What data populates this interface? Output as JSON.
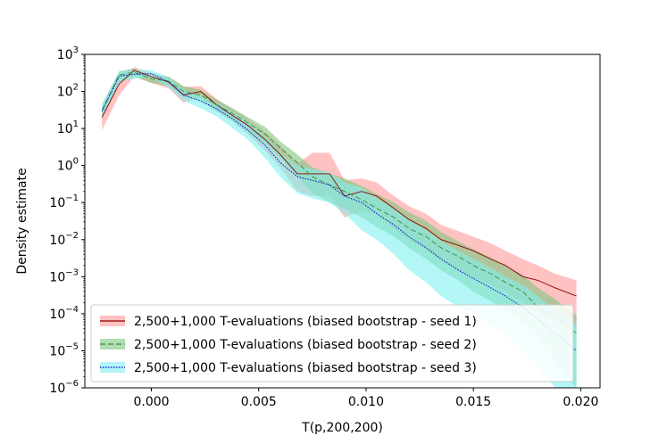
{
  "chart_data": {
    "type": "line",
    "title": "",
    "xlabel": "T(p,200,200)",
    "ylabel": "Density estimate",
    "xlim": [
      -0.0031,
      0.0209
    ],
    "ylim": [
      1e-06,
      1000
    ],
    "yscale": "log",
    "grid": false,
    "legend_position": "bottom-left",
    "x_ticks": [
      {
        "value": 0.0,
        "label": "0.000"
      },
      {
        "value": 0.005,
        "label": "0.005"
      },
      {
        "value": 0.01,
        "label": "0.010"
      },
      {
        "value": 0.015,
        "label": "0.015"
      },
      {
        "value": 0.02,
        "label": "0.020"
      }
    ],
    "y_ticks": [
      {
        "exp": -6,
        "label_base": "10",
        "label_exp": "−6"
      },
      {
        "exp": -5,
        "label_base": "10",
        "label_exp": "−5"
      },
      {
        "exp": -4,
        "label_base": "10",
        "label_exp": "−4"
      },
      {
        "exp": -3,
        "label_base": "10",
        "label_exp": "−3"
      },
      {
        "exp": -2,
        "label_base": "10",
        "label_exp": "−2"
      },
      {
        "exp": -1,
        "label_base": "10",
        "label_exp": "−1"
      },
      {
        "exp": 0,
        "label_base": "10",
        "label_exp": "0"
      },
      {
        "exp": 1,
        "label_base": "10",
        "label_exp": "1"
      },
      {
        "exp": 2,
        "label_base": "10",
        "label_exp": "2"
      },
      {
        "exp": 3,
        "label_base": "10",
        "label_exp": "3"
      }
    ],
    "series": [
      {
        "name": "2,500+1,000 T-evaluations (biased bootstrap - seed 1)",
        "line_color": "#8b0000",
        "band_color": "#ff9a9a",
        "line_style": "solid",
        "x": [
          -0.0023,
          -0.0015,
          -0.0008,
          0.0,
          0.0008,
          0.0015,
          0.0023,
          0.003,
          0.0038,
          0.0045,
          0.0053,
          0.006,
          0.0068,
          0.0075,
          0.0083,
          0.009,
          0.0098,
          0.0105,
          0.0113,
          0.012,
          0.0128,
          0.0135,
          0.0143,
          0.015,
          0.0158,
          0.0165,
          0.0173,
          0.018,
          0.0188,
          0.0198
        ],
        "values": [
          20,
          160,
          370,
          250,
          180,
          80,
          100,
          45,
          22,
          12,
          5,
          2,
          0.6,
          0.6,
          0.6,
          0.15,
          0.2,
          0.15,
          0.07,
          0.035,
          0.02,
          0.01,
          0.007,
          0.005,
          0.003,
          0.002,
          0.001,
          0.0008,
          0.0005,
          0.0003
        ],
        "lower": [
          9,
          80,
          250,
          170,
          120,
          50,
          70,
          30,
          15,
          7,
          2.5,
          0.9,
          0.2,
          0.15,
          0.15,
          0.04,
          0.06,
          0.05,
          0.02,
          0.01,
          0.005,
          0.0025,
          0.0015,
          0.001,
          0.0006,
          0.0004,
          0.0002,
          0.0001,
          6e-05,
          4e-05
        ],
        "upper": [
          35,
          250,
          450,
          320,
          250,
          130,
          140,
          65,
          32,
          18,
          8,
          3.5,
          1.1,
          2.2,
          2.2,
          0.4,
          0.45,
          0.35,
          0.15,
          0.08,
          0.05,
          0.025,
          0.017,
          0.012,
          0.008,
          0.005,
          0.003,
          0.002,
          0.0012,
          0.0008
        ]
      },
      {
        "name": "2,500+1,000 T-evaluations (biased bootstrap - seed 2)",
        "line_color": "#3c8c3c",
        "band_color": "#7ec77e",
        "line_style": "dashed",
        "x": [
          -0.0023,
          -0.0015,
          -0.0008,
          0.0,
          0.0008,
          0.0015,
          0.0023,
          0.003,
          0.0038,
          0.0045,
          0.0053,
          0.006,
          0.0068,
          0.0075,
          0.0083,
          0.009,
          0.0098,
          0.0105,
          0.0113,
          0.012,
          0.0128,
          0.0135,
          0.0143,
          0.015,
          0.0158,
          0.0165,
          0.0173,
          0.018,
          0.0188,
          0.0198
        ],
        "values": [
          30,
          280,
          330,
          220,
          190,
          100,
          80,
          45,
          25,
          14,
          7,
          3,
          1.2,
          0.5,
          0.3,
          0.2,
          0.12,
          0.07,
          0.04,
          0.02,
          0.012,
          0.006,
          0.0035,
          0.002,
          0.0012,
          0.0007,
          0.0004,
          0.00015,
          8e-05,
          3e-05
        ],
        "lower": [
          18,
          180,
          250,
          170,
          140,
          70,
          55,
          30,
          16,
          8,
          4,
          1.6,
          0.5,
          0.18,
          0.1,
          0.07,
          0.04,
          0.022,
          0.012,
          0.006,
          0.003,
          0.0015,
          0.0008,
          0.0004,
          0.00022,
          0.00012,
          6e-05,
          2.5e-05,
          5e-06,
          1e-06
        ],
        "upper": [
          45,
          350,
          420,
          280,
          250,
          140,
          110,
          62,
          35,
          20,
          11,
          4.5,
          2,
          0.9,
          0.6,
          0.45,
          0.28,
          0.17,
          0.1,
          0.055,
          0.032,
          0.016,
          0.009,
          0.0055,
          0.0033,
          0.002,
          0.0011,
          0.0005,
          0.00025,
          9e-05
        ]
      },
      {
        "name": "2,500+1,000 T-evaluations (biased bootstrap - seed 3)",
        "line_color": "#0000cc",
        "band_color": "#7ef0f0",
        "line_style": "dotted",
        "x": [
          -0.0023,
          -0.0015,
          -0.0008,
          0.0,
          0.0008,
          0.0015,
          0.0023,
          0.003,
          0.0038,
          0.0045,
          0.0053,
          0.006,
          0.0068,
          0.0075,
          0.0083,
          0.009,
          0.0098,
          0.0105,
          0.0113,
          0.012,
          0.0128,
          0.0135,
          0.0143,
          0.015,
          0.0158,
          0.0165,
          0.0173,
          0.018,
          0.0188,
          0.0198
        ],
        "values": [
          30,
          260,
          290,
          300,
          180,
          80,
          55,
          35,
          18,
          9,
          3.5,
          1.2,
          0.5,
          0.4,
          0.3,
          0.15,
          0.1,
          0.05,
          0.025,
          0.012,
          0.006,
          0.003,
          0.0015,
          0.0009,
          0.0005,
          0.0003,
          0.00015,
          7e-05,
          3e-05,
          1e-05
        ],
        "lower": [
          20,
          180,
          220,
          240,
          130,
          55,
          35,
          22,
          10,
          5,
          1.6,
          0.5,
          0.18,
          0.13,
          0.1,
          0.05,
          0.018,
          0.01,
          0.004,
          0.0015,
          0.0007,
          0.0003,
          0.00015,
          0.0001,
          5e-05,
          3e-05,
          1e-05,
          4e-06,
          1e-06,
          1e-06
        ],
        "upper": [
          42,
          340,
          380,
          380,
          240,
          110,
          80,
          50,
          28,
          15,
          6,
          2.2,
          1,
          0.8,
          0.65,
          0.35,
          0.25,
          0.13,
          0.07,
          0.035,
          0.018,
          0.009,
          0.005,
          0.003,
          0.0017,
          0.001,
          0.0006,
          0.0003,
          0.00013,
          5e-05
        ]
      }
    ]
  }
}
